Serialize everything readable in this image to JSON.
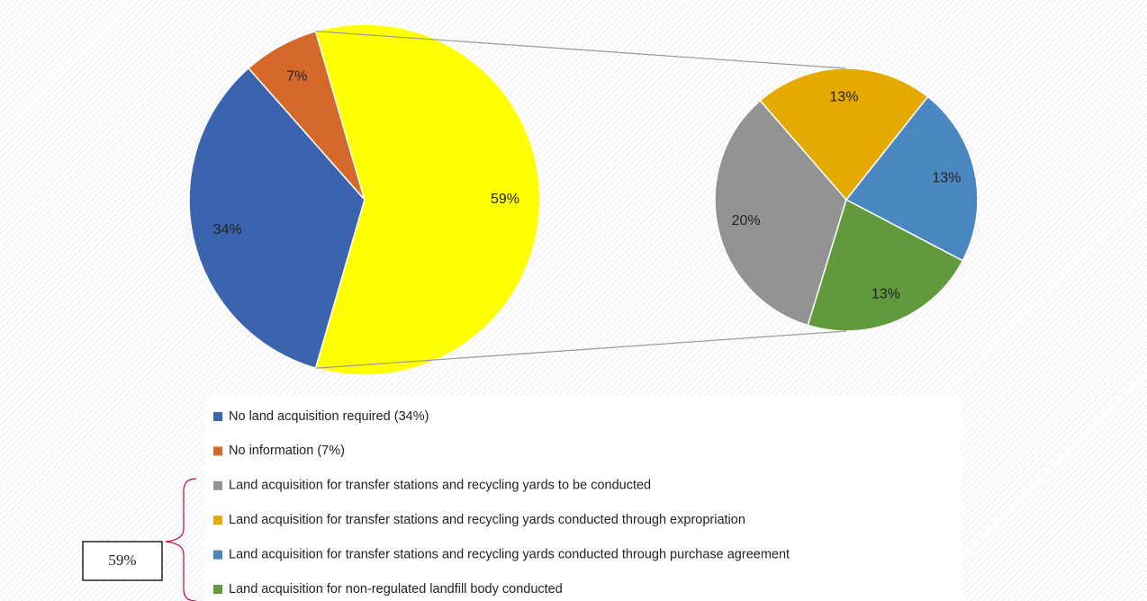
{
  "chart_data": {
    "type": "pie-of-pie",
    "pies": [
      {
        "categories": [
          "No land acquisition required (34%)",
          "No information (7%)",
          null
        ],
        "values": [
          34,
          7,
          59
        ],
        "value_labels": [
          "34%",
          "7%",
          "59%"
        ],
        "colors": [
          "#3c64ae",
          "#d4692b",
          "#ffff00"
        ]
      },
      {
        "categories": [
          "Land acquisition for transfer stations and recycling yards to be conducted",
          "Land acquisition for transfer stations and recycling yards conducted through expropriation",
          "Land acquisition for transfer stations and recycling yards conducted through purchase agreement",
          "Land acquisition for non-regulated landfill body conducted"
        ],
        "values": [
          20,
          13,
          13,
          13
        ],
        "value_labels": [
          "20%",
          "13%",
          "13%",
          "13%"
        ],
        "colors": [
          "#939393",
          "#e4aa00",
          "#4a87c0",
          "#609a3c"
        ]
      }
    ],
    "annotation": "59%"
  }
}
